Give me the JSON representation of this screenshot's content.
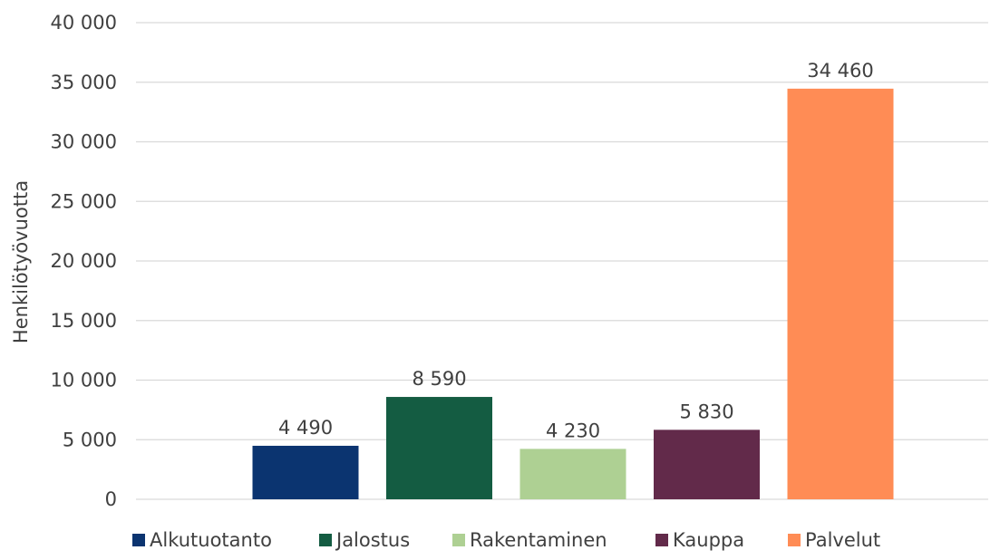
{
  "chart_data": {
    "type": "bar",
    "title": "",
    "xlabel": "",
    "ylabel": "Henkilötyövuotta",
    "ylim": [
      0,
      40000
    ],
    "yticks": [
      0,
      5000,
      10000,
      15000,
      20000,
      25000,
      30000,
      35000,
      40000
    ],
    "ytick_labels": [
      "0",
      "5 000",
      "10 000",
      "15 000",
      "20 000",
      "25 000",
      "30 000",
      "35 000",
      "40 000"
    ],
    "grid": true,
    "legend_position": "bottom",
    "categories": [
      "Alkutuotanto",
      "Jalostus",
      "Rakentaminen",
      "Kauppa",
      "Palvelut"
    ],
    "series": [
      {
        "name": "Alkutuotanto",
        "value": 4490,
        "label": "4 490",
        "color": "#0b3470"
      },
      {
        "name": "Jalostus",
        "value": 8590,
        "label": "8 590",
        "color": "#145c42"
      },
      {
        "name": "Rakentaminen",
        "value": 4230,
        "label": "4 230",
        "color": "#aed093"
      },
      {
        "name": "Kauppa",
        "value": 5830,
        "label": "5 830",
        "color": "#622a4a"
      },
      {
        "name": "Palvelut",
        "value": 34460,
        "label": "34 460",
        "color": "#ff8c55"
      }
    ]
  }
}
